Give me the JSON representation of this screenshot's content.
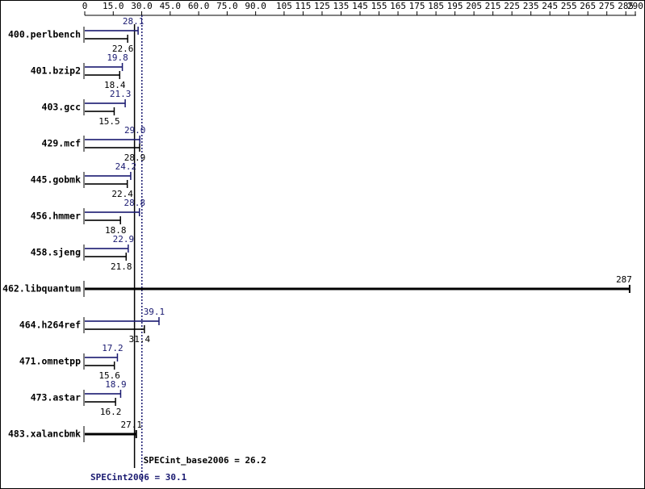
{
  "chart_data": {
    "type": "bar",
    "orientation": "horizontal",
    "categories": [
      "400.perlbench",
      "401.bzip2",
      "403.gcc",
      "429.mcf",
      "445.gobmk",
      "456.hmmer",
      "458.sjeng",
      "462.libquantum",
      "464.h264ref",
      "471.omnetpp",
      "473.astar",
      "483.xalancbmk"
    ],
    "series": [
      {
        "color": "#191970",
        "values": [
          28.1,
          19.8,
          21.3,
          29.0,
          24.2,
          28.8,
          22.9,
          null,
          39.1,
          17.2,
          18.9,
          null
        ],
        "value_labels": [
          "28.1",
          "19.8",
          "21.3",
          "29.0",
          "24.2",
          "28.8",
          "22.9",
          null,
          "39.1",
          "17.2",
          "18.9",
          null
        ]
      },
      {
        "color": "#000000",
        "values": [
          22.6,
          18.4,
          15.5,
          28.9,
          22.4,
          18.8,
          21.8,
          287,
          31.4,
          15.6,
          16.2,
          27.1
        ],
        "value_labels": [
          "22.6",
          "18.4",
          "15.5",
          "28.9",
          "22.4",
          "18.8",
          "21.8",
          "287",
          "31.4",
          "15.6",
          "16.2",
          "27.1"
        ]
      }
    ],
    "xlim": [
      0,
      290
    ],
    "xticks": [
      0,
      {
        "value": 15,
        "label": "15.0"
      },
      {
        "value": 30,
        "label": "30.0"
      },
      {
        "value": 45,
        "label": "45.0"
      },
      {
        "value": 60,
        "label": "60.0"
      },
      {
        "value": 75,
        "label": "75.0"
      },
      {
        "value": 90,
        "label": "90.0"
      },
      105,
      115,
      125,
      135,
      145,
      155,
      165,
      175,
      185,
      195,
      205,
      215,
      225,
      235,
      245,
      255,
      265,
      275,
      285,
      290
    ],
    "reference_lines": [
      {
        "value": 26.2,
        "label": "SPECint_base2006 = 26.2",
        "color": "#000000",
        "style": "solid"
      },
      {
        "value": 30.1,
        "label": "SPECint2006 = 30.1",
        "color": "#191970",
        "style": "dotted"
      }
    ]
  }
}
